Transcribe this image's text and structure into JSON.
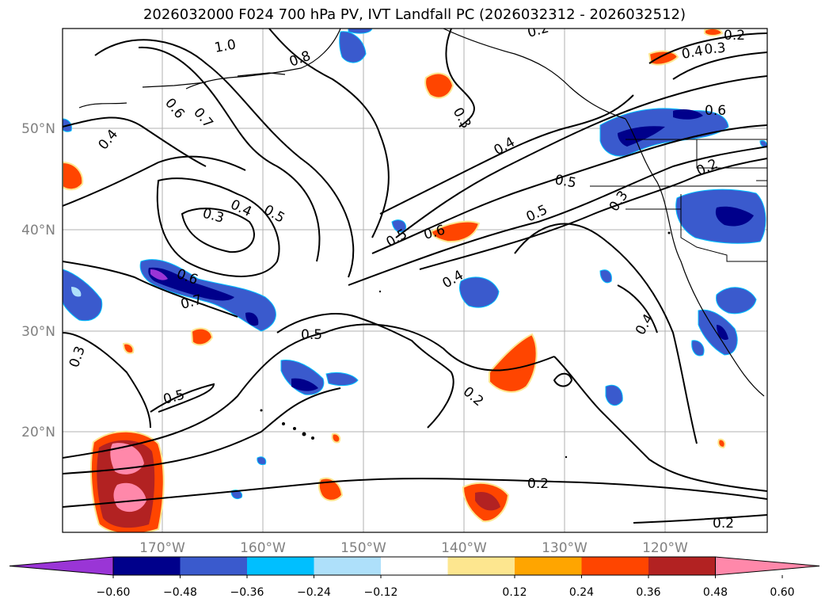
{
  "title": "2026032000 F024 700 hPa PV, IVT Landfall PC (2026032312 - 2026032512)",
  "lat_labels": [
    "50°N",
    "40°N",
    "30°N",
    "20°N"
  ],
  "lon_labels": [
    "170°W",
    "160°W",
    "150°W",
    "140°W",
    "130°W",
    "120°W"
  ],
  "colorbar": {
    "ticks": [
      "−0.60",
      "−0.48",
      "−0.36",
      "−0.24",
      "−0.12",
      "0.12",
      "0.24",
      "0.36",
      "0.48",
      "0.60"
    ],
    "colors": [
      "#9a35d6",
      "#00008b",
      "#3a5acd",
      "#00bfff",
      "#aee0fa",
      "#ffffff",
      "#fde68f",
      "#ffa500",
      "#ff4500",
      "#b22222",
      "#ff88aa"
    ]
  },
  "contour_labels": [
    "1.0",
    "0.8",
    "0.6",
    "0.7",
    "0.4",
    "0.3",
    "0.4",
    "0.5",
    "0.6",
    "0.7",
    "0.3",
    "0.5",
    "0.2",
    "0.5",
    "0.5",
    "0.6",
    "0.4",
    "0.3",
    "0.4",
    "0.5",
    "0.5",
    "0.3",
    "0.2",
    "0.6",
    "0.4",
    "0.3",
    "0.2",
    "0.4",
    "0.2",
    "0.2",
    "0.2"
  ]
}
